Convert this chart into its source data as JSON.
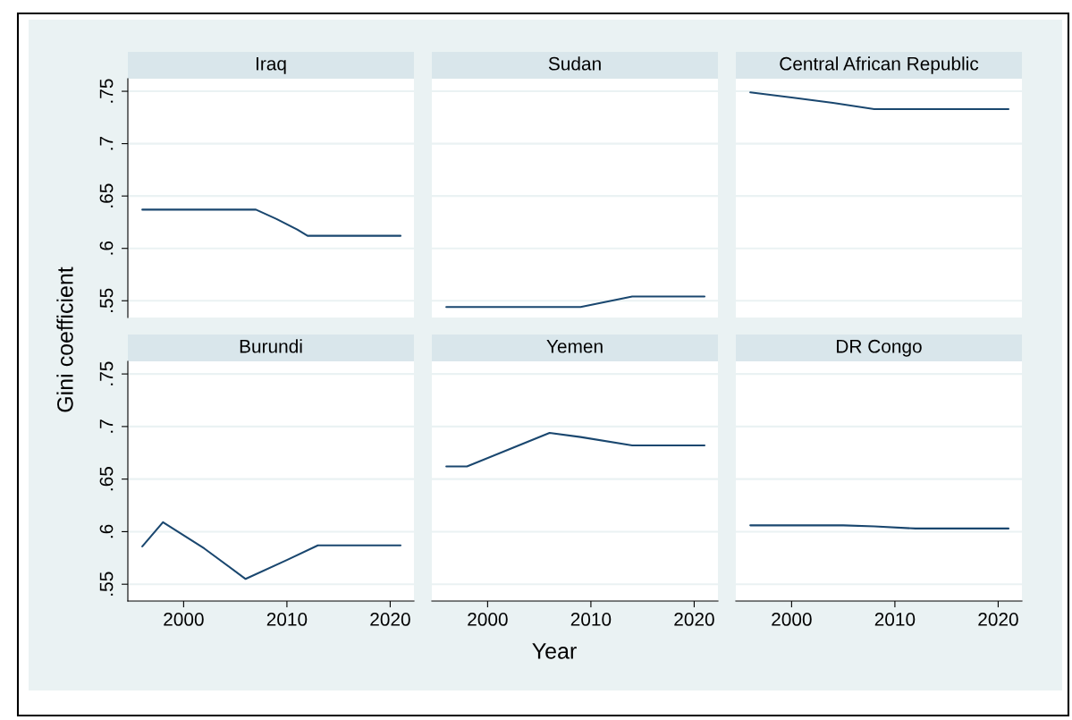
{
  "chart_data": [
    {
      "type": "line",
      "title": "Iraq",
      "ylabel": "Gini coefficient",
      "x": [
        1996,
        2000,
        2004,
        2007,
        2009,
        2011,
        2012,
        2016,
        2021
      ],
      "series": [
        {
          "color": "#1a476f",
          "values": [
            0.637,
            0.637,
            0.637,
            0.637,
            0.628,
            0.618,
            0.612,
            0.612,
            0.612
          ]
        }
      ],
      "xlim": [
        1994.6,
        2022.3
      ],
      "ylim": [
        0.534,
        0.762
      ],
      "xticks": [
        2000,
        2010,
        2020
      ],
      "yticks": [
        {
          "value": 0.55,
          "label": ".55"
        },
        {
          "value": 0.6,
          "label": ".6"
        },
        {
          "value": 0.65,
          "label": ".65"
        },
        {
          "value": 0.7,
          "label": ".7"
        },
        {
          "value": 0.75,
          "label": ".75"
        }
      ],
      "tick_labels": "y",
      "grid": "y"
    },
    {
      "type": "line",
      "title": "Sudan",
      "x": [
        1996,
        2000,
        2005,
        2009,
        2014,
        2018,
        2021
      ],
      "series": [
        {
          "color": "#1a476f",
          "values": [
            0.544,
            0.544,
            0.544,
            0.544,
            0.554,
            0.554,
            0.554
          ]
        }
      ],
      "xlim": [
        1994.6,
        2022.3
      ],
      "ylim": [
        0.534,
        0.762
      ],
      "xticks": [
        2000,
        2010,
        2020
      ],
      "yticks": [
        0.55,
        0.6,
        0.65,
        0.7,
        0.75
      ],
      "tick_labels": false,
      "grid": "y"
    },
    {
      "type": "line",
      "title": "Central African Republic",
      "x": [
        1996,
        2000,
        2004,
        2008,
        2014,
        2021
      ],
      "series": [
        {
          "color": "#1a476f",
          "values": [
            0.749,
            0.744,
            0.739,
            0.733,
            0.733,
            0.733
          ]
        }
      ],
      "xlim": [
        1994.6,
        2022.3
      ],
      "ylim": [
        0.534,
        0.762
      ],
      "xticks": [
        2000,
        2010,
        2020
      ],
      "yticks": [
        0.55,
        0.6,
        0.65,
        0.7,
        0.75
      ],
      "tick_labels": false,
      "grid": "y"
    },
    {
      "type": "line",
      "title": "Burundi",
      "x": [
        1996,
        1998,
        2002,
        2006,
        2010,
        2013,
        2017,
        2021
      ],
      "series": [
        {
          "color": "#1a476f",
          "values": [
            0.586,
            0.609,
            0.584,
            0.555,
            0.573,
            0.587,
            0.587,
            0.587
          ]
        }
      ],
      "xlim": [
        1994.6,
        2022.3
      ],
      "ylim": [
        0.534,
        0.762
      ],
      "xticks": [
        2000,
        2010,
        2020
      ],
      "yticks": [
        {
          "value": 0.55,
          "label": ".55"
        },
        {
          "value": 0.6,
          "label": ".6"
        },
        {
          "value": 0.65,
          "label": ".65"
        },
        {
          "value": 0.7,
          "label": ".7"
        },
        {
          "value": 0.75,
          "label": ".75"
        }
      ],
      "grid": "y"
    },
    {
      "type": "line",
      "title": "Yemen",
      "xlabel": "Year",
      "x": [
        1996,
        1998,
        2002,
        2006,
        2009,
        2014,
        2018,
        2021
      ],
      "series": [
        {
          "color": "#1a476f",
          "values": [
            0.662,
            0.662,
            0.678,
            0.694,
            0.69,
            0.682,
            0.682,
            0.682
          ]
        }
      ],
      "xlim": [
        1994.6,
        2022.3
      ],
      "ylim": [
        0.534,
        0.762
      ],
      "xticks": [
        2000,
        2010,
        2020
      ],
      "yticks": [
        0.55,
        0.6,
        0.65,
        0.7,
        0.75
      ],
      "tick_labels": "x",
      "grid": "y"
    },
    {
      "type": "line",
      "title": "DR Congo",
      "x": [
        1996,
        2000,
        2005,
        2008,
        2012,
        2016,
        2021
      ],
      "series": [
        {
          "color": "#1a476f",
          "values": [
            0.606,
            0.606,
            0.606,
            0.605,
            0.603,
            0.603,
            0.603
          ]
        }
      ],
      "xlim": [
        1994.6,
        2022.3
      ],
      "ylim": [
        0.534,
        0.762
      ],
      "xticks": [
        2000,
        2010,
        2020
      ],
      "yticks": [
        0.55,
        0.6,
        0.65,
        0.7,
        0.75
      ],
      "tick_labels": "x",
      "grid": "y"
    }
  ]
}
